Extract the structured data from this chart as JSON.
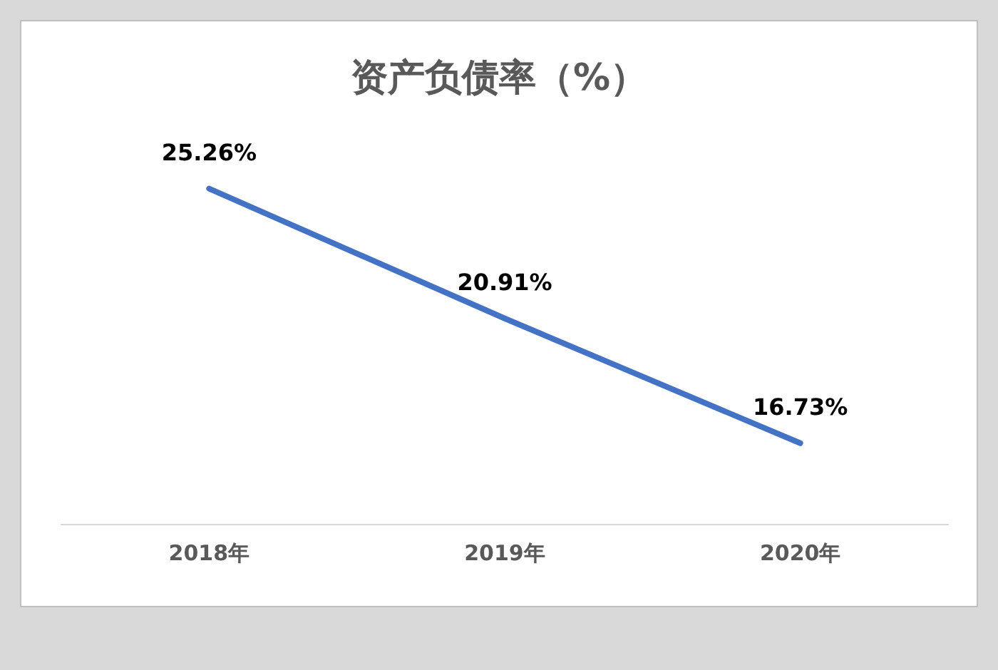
{
  "chart_data": {
    "type": "line",
    "title": "资产负债率（%）",
    "categories": [
      "2018年",
      "2019年",
      "2020年"
    ],
    "series": [
      {
        "color": "#4472c4",
        "values": [
          25.26,
          20.91,
          16.73
        ],
        "value_labels": [
          "25.26%",
          "20.91%",
          "16.73%"
        ]
      }
    ],
    "tick_labels": "x",
    "grid": false,
    "legend": false,
    "marker": "none",
    "line_style": "solid"
  }
}
